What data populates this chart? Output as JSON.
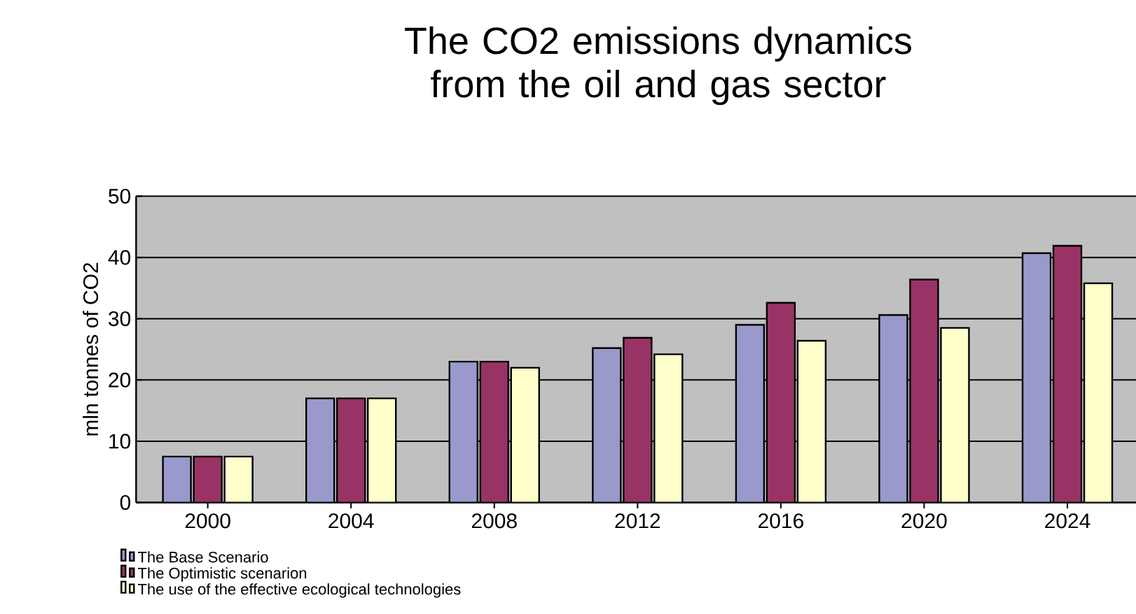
{
  "chart_data": {
    "type": "bar",
    "title": "The CO2 emissions dynamics from the oil and gas sector",
    "ylabel": "mln tonnes of CO2",
    "categories": [
      "2000",
      "2004",
      "2008",
      "2012",
      "2016",
      "2020",
      "2024"
    ],
    "series": [
      {
        "name": "The Base Scenario",
        "color": "#9999cc",
        "values": [
          7.5,
          17,
          23,
          25.2,
          29,
          30.6,
          40.7
        ]
      },
      {
        "name": "The Optimistic scenarion",
        "color": "#993366",
        "values": [
          7.5,
          17,
          23,
          26.9,
          32.6,
          36.4,
          41.9
        ]
      },
      {
        "name": "The use of the effective ecological technologies",
        "color": "#ffffcc",
        "values": [
          7.5,
          17,
          22,
          24.2,
          26.4,
          28.5,
          35.8
        ]
      }
    ],
    "ylim": [
      0,
      50
    ],
    "yticks": [
      0,
      10,
      20,
      30,
      40,
      50
    ],
    "grid": "y",
    "legend": "bottom"
  }
}
